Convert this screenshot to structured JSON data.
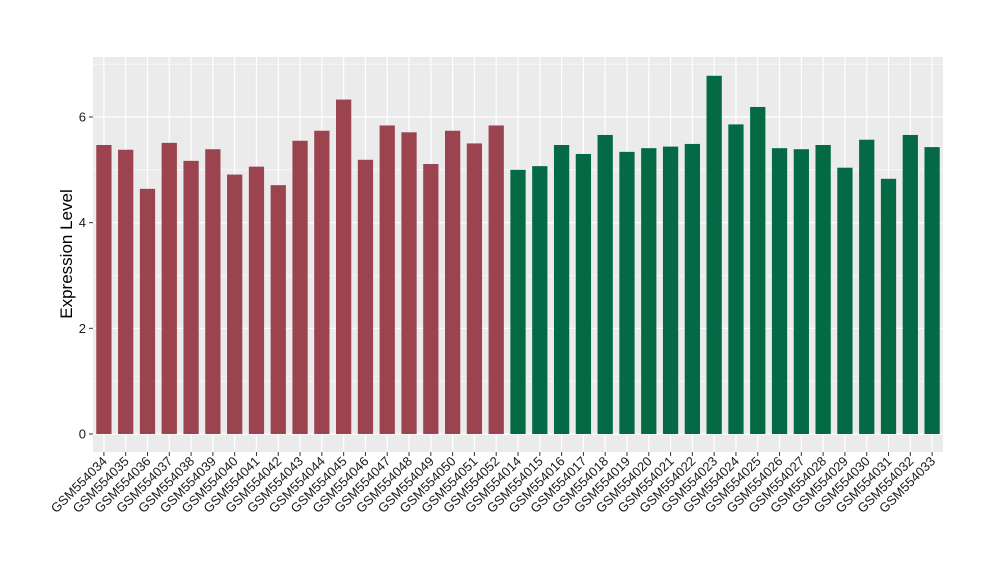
{
  "chart_data": {
    "type": "bar",
    "title": "",
    "xlabel": "",
    "ylabel": "Expression Level",
    "ylim": [
      0,
      7.1
    ],
    "yticks": [
      0,
      2,
      4,
      6
    ],
    "grid": true,
    "background": "#ebebeb",
    "gridline_color": "#ffffff",
    "categories": [
      "GSM554034",
      "GSM554035",
      "GSM554036",
      "GSM554037",
      "GSM554038",
      "GSM554039",
      "GSM554040",
      "GSM554041",
      "GSM554042",
      "GSM554043",
      "GSM554044",
      "GSM554045",
      "GSM554046",
      "GSM554047",
      "GSM554048",
      "GSM554049",
      "GSM554050",
      "GSM554051",
      "GSM554052",
      "GSM554014",
      "GSM554015",
      "GSM554016",
      "GSM554017",
      "GSM554018",
      "GSM554019",
      "GSM554020",
      "GSM554021",
      "GSM554022",
      "GSM554023",
      "GSM554024",
      "GSM554025",
      "GSM554026",
      "GSM554027",
      "GSM554028",
      "GSM554029",
      "GSM554030",
      "GSM554031",
      "GSM554032",
      "GSM554033"
    ],
    "values": [
      5.47,
      5.38,
      4.64,
      5.51,
      5.17,
      5.39,
      4.91,
      5.06,
      4.71,
      5.55,
      5.74,
      6.33,
      5.19,
      5.84,
      5.71,
      5.11,
      5.74,
      5.5,
      5.84,
      5.0,
      5.07,
      5.47,
      5.3,
      5.66,
      5.34,
      5.41,
      5.44,
      5.49,
      6.78,
      5.86,
      6.19,
      5.41,
      5.39,
      5.47,
      5.04,
      5.57,
      4.83,
      5.66,
      5.43
    ],
    "group_sizes": [
      19,
      20
    ],
    "group_colors": [
      "#9b4450",
      "#036a45"
    ]
  }
}
